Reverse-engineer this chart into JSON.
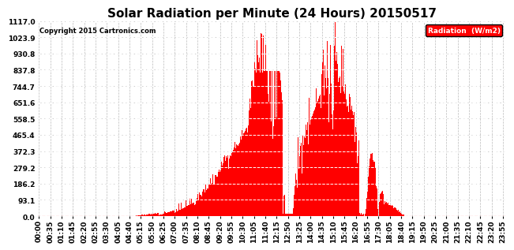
{
  "title": "Solar Radiation per Minute (24 Hours) 20150517",
  "copyright_text": "Copyright 2015 Cartronics.com",
  "ylim": [
    0.0,
    1117.0
  ],
  "yticks": [
    0.0,
    93.1,
    186.2,
    279.2,
    372.3,
    465.4,
    558.5,
    651.6,
    744.7,
    837.8,
    930.8,
    1023.9,
    1117.0
  ],
  "bar_color": "#FF0000",
  "bg_color": "#FFFFFF",
  "grid_color": "#BBBBBB",
  "legend_bg": "#FF0000",
  "legend_text": "Radiation  (W/m2)",
  "dashed_line_color": "#FFFFFF",
  "zero_line_color": "#FF0000",
  "title_fontsize": 11,
  "tick_fontsize": 6.5,
  "minutes_per_day": 1440,
  "tick_step": 35
}
